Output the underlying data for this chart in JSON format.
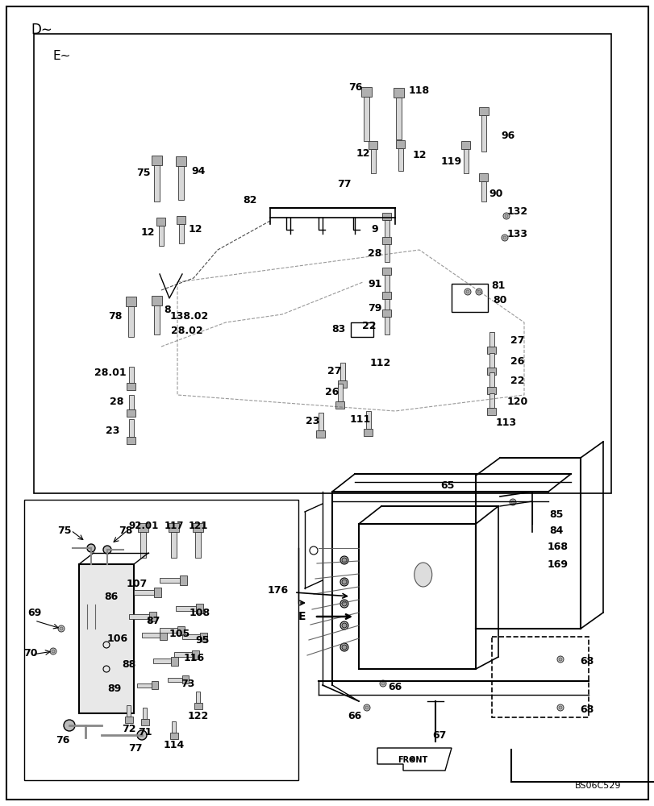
{
  "bg_color": "#ffffff",
  "border_color": "#000000",
  "watermark": "BS06C529",
  "d_label": "D∼",
  "e_label": "E∼"
}
